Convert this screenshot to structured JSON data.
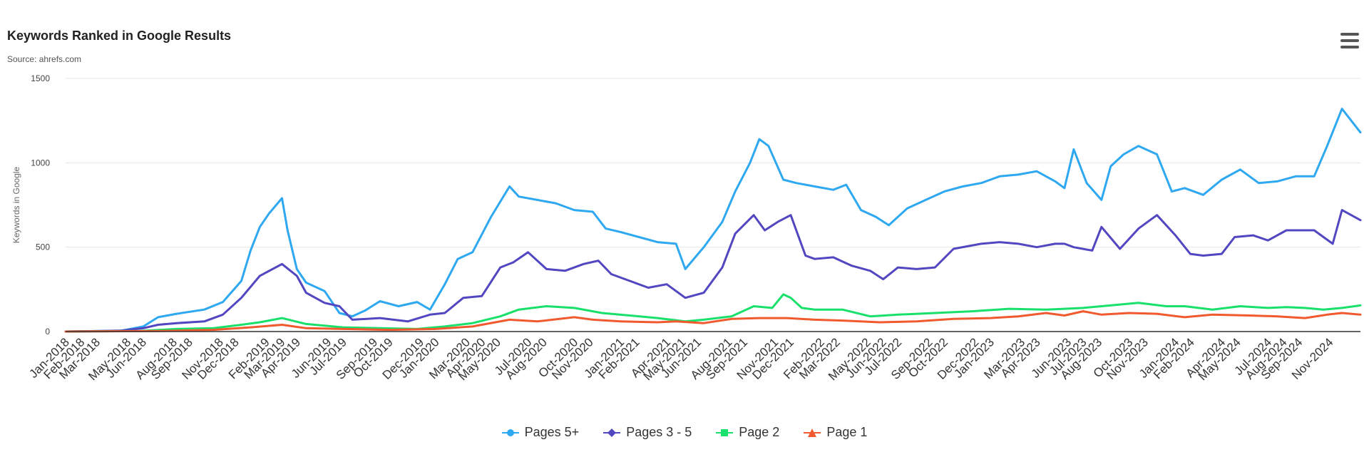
{
  "title": "Keywords Ranked in Google Results",
  "subtitle": "Source: ahrefs.com",
  "menu_icon": "hamburger-menu-icon",
  "chart_data": {
    "type": "line",
    "title": "Keywords Ranked in Google Results",
    "subtitle": "Source: ahrefs.com",
    "xlabel": "",
    "ylabel": "Keywords in Google",
    "ylim": [
      0,
      1500
    ],
    "yticks": [
      0,
      500,
      1000,
      1500
    ],
    "xlim": [
      2018.0,
      2025.0
    ],
    "grid": true,
    "legend_position": "bottom-center",
    "x_tick_labels": [
      "Jan-2018",
      "Feb-2018",
      "Mar-2018",
      "May-2018",
      "Jun-2018",
      "Aug-2018",
      "Sep-2018",
      "Nov-2018",
      "Dec-2018",
      "Feb-2019",
      "Mar-2019",
      "Apr-2019",
      "Jun-2019",
      "Jul-2019",
      "Sep-2019",
      "Oct-2019",
      "Dec-2019",
      "Jan-2020",
      "Mar-2020",
      "Apr-2020",
      "May-2020",
      "Jul-2020",
      "Aug-2020",
      "Oct-2020",
      "Nov-2020",
      "Jan-2021",
      "Feb-2021",
      "Apr-2021",
      "May-2021",
      "Jun-2021",
      "Aug-2021",
      "Sep-2021",
      "Nov-2021",
      "Dec-2021",
      "Feb-2022",
      "Mar-2022",
      "May-2022",
      "Jun-2022",
      "Jul-2022",
      "Sep-2022",
      "Oct-2022",
      "Dec-2022",
      "Jan-2023",
      "Mar-2023",
      "Apr-2023",
      "Jun-2023",
      "Jul-2023",
      "Aug-2023",
      "Oct-2023",
      "Nov-2023",
      "Jan-2024",
      "Feb-2024",
      "Apr-2024",
      "May-2024",
      "Jul-2024",
      "Aug-2024",
      "Sep-2024",
      "Nov-2024"
    ],
    "x_tick_values": [
      2018.0,
      2018.083,
      2018.167,
      2018.333,
      2018.417,
      2018.583,
      2018.667,
      2018.833,
      2018.917,
      2019.083,
      2019.167,
      2019.25,
      2019.417,
      2019.5,
      2019.667,
      2019.75,
      2019.917,
      2020.0,
      2020.167,
      2020.25,
      2020.333,
      2020.5,
      2020.583,
      2020.75,
      2020.833,
      2021.0,
      2021.083,
      2021.25,
      2021.333,
      2021.417,
      2021.583,
      2021.667,
      2021.833,
      2021.917,
      2022.083,
      2022.167,
      2022.333,
      2022.417,
      2022.5,
      2022.667,
      2022.75,
      2022.917,
      2023.0,
      2023.167,
      2023.25,
      2023.417,
      2023.5,
      2023.583,
      2023.75,
      2023.833,
      2024.0,
      2024.083,
      2024.25,
      2024.333,
      2024.5,
      2024.583,
      2024.667,
      2024.833
    ],
    "series": [
      {
        "name": "Pages 5+",
        "color": "#2ea8f0",
        "marker": "circle",
        "x": [
          2018.0,
          2018.3,
          2018.42,
          2018.5,
          2018.6,
          2018.75,
          2018.85,
          2018.95,
          2019.0,
          2019.05,
          2019.1,
          2019.17,
          2019.2,
          2019.25,
          2019.3,
          2019.4,
          2019.48,
          2019.55,
          2019.62,
          2019.7,
          2019.8,
          2019.9,
          2019.97,
          2020.05,
          2020.12,
          2020.2,
          2020.3,
          2020.4,
          2020.45,
          2020.55,
          2020.65,
          2020.75,
          2020.85,
          2020.92,
          2021.0,
          2021.1,
          2021.2,
          2021.3,
          2021.35,
          2021.45,
          2021.55,
          2021.62,
          2021.7,
          2021.75,
          2021.8,
          2021.88,
          2021.95,
          2022.05,
          2022.15,
          2022.22,
          2022.3,
          2022.38,
          2022.45,
          2022.55,
          2022.65,
          2022.75,
          2022.85,
          2022.95,
          2023.05,
          2023.15,
          2023.25,
          2023.35,
          2023.4,
          2023.45,
          2023.52,
          2023.6,
          2023.65,
          2023.72,
          2023.8,
          2023.9,
          2023.98,
          2024.05,
          2024.15,
          2024.25,
          2024.35,
          2024.45,
          2024.55,
          2024.65,
          2024.75,
          2024.82,
          2024.9,
          2025.0
        ],
        "y": [
          0,
          5,
          30,
          85,
          105,
          130,
          175,
          300,
          480,
          620,
          700,
          790,
          600,
          370,
          290,
          240,
          110,
          90,
          125,
          180,
          150,
          175,
          130,
          280,
          430,
          470,
          680,
          860,
          800,
          780,
          760,
          720,
          710,
          610,
          590,
          560,
          530,
          520,
          370,
          500,
          650,
          830,
          1000,
          1140,
          1100,
          900,
          880,
          860,
          840,
          870,
          720,
          680,
          630,
          730,
          780,
          830,
          860,
          880,
          920,
          930,
          950,
          890,
          850,
          1080,
          880,
          780,
          980,
          1050,
          1100,
          1050,
          830,
          850,
          810,
          900,
          960,
          880,
          890,
          920,
          920,
          1100,
          1320,
          1180
        ]
      },
      {
        "name": "Pages 3 - 5",
        "color": "#5247c0",
        "marker": "diamond",
        "x": [
          2018.0,
          2018.3,
          2018.42,
          2018.5,
          2018.6,
          2018.75,
          2018.85,
          2018.95,
          2019.05,
          2019.17,
          2019.25,
          2019.3,
          2019.4,
          2019.48,
          2019.55,
          2019.7,
          2019.85,
          2019.97,
          2020.05,
          2020.15,
          2020.25,
          2020.35,
          2020.42,
          2020.5,
          2020.6,
          2020.7,
          2020.8,
          2020.88,
          2020.95,
          2021.05,
          2021.15,
          2021.25,
          2021.35,
          2021.45,
          2021.55,
          2021.62,
          2021.72,
          2021.78,
          2021.85,
          2021.92,
          2022.0,
          2022.05,
          2022.15,
          2022.25,
          2022.35,
          2022.42,
          2022.5,
          2022.6,
          2022.7,
          2022.8,
          2022.95,
          2023.05,
          2023.15,
          2023.25,
          2023.35,
          2023.4,
          2023.45,
          2023.55,
          2023.6,
          2023.7,
          2023.8,
          2023.9,
          2024.0,
          2024.08,
          2024.15,
          2024.25,
          2024.32,
          2024.42,
          2024.5,
          2024.6,
          2024.68,
          2024.75,
          2024.85,
          2024.9,
          2025.0
        ],
        "y": [
          0,
          5,
          20,
          40,
          50,
          60,
          100,
          200,
          330,
          400,
          330,
          230,
          170,
          150,
          70,
          80,
          60,
          100,
          110,
          200,
          210,
          380,
          410,
          470,
          370,
          360,
          400,
          420,
          340,
          300,
          260,
          280,
          200,
          230,
          380,
          580,
          690,
          600,
          650,
          690,
          450,
          430,
          440,
          390,
          360,
          310,
          380,
          370,
          380,
          490,
          520,
          530,
          520,
          500,
          520,
          520,
          500,
          480,
          620,
          490,
          610,
          690,
          570,
          460,
          450,
          460,
          560,
          570,
          540,
          600,
          600,
          600,
          520,
          720,
          660
        ]
      },
      {
        "name": "Page 2",
        "color": "#19e06a",
        "marker": "square",
        "x": [
          2018.0,
          2018.4,
          2018.6,
          2018.8,
          2018.95,
          2019.05,
          2019.17,
          2019.3,
          2019.5,
          2019.7,
          2019.9,
          2020.05,
          2020.2,
          2020.35,
          2020.45,
          2020.6,
          2020.75,
          2020.9,
          2021.05,
          2021.2,
          2021.35,
          2021.45,
          2021.6,
          2021.72,
          2021.82,
          2021.88,
          2021.92,
          2021.98,
          2022.05,
          2022.2,
          2022.35,
          2022.5,
          2022.7,
          2022.9,
          2023.1,
          2023.3,
          2023.4,
          2023.5,
          2023.6,
          2023.7,
          2023.8,
          2023.95,
          2024.05,
          2024.2,
          2024.35,
          2024.5,
          2024.6,
          2024.7,
          2024.8,
          2024.9,
          2025.0
        ],
        "y": [
          0,
          3,
          15,
          20,
          40,
          55,
          80,
          45,
          25,
          20,
          15,
          30,
          50,
          90,
          130,
          150,
          140,
          110,
          95,
          80,
          60,
          70,
          90,
          150,
          140,
          220,
          200,
          140,
          130,
          130,
          90,
          100,
          110,
          120,
          135,
          130,
          135,
          140,
          150,
          160,
          170,
          150,
          150,
          130,
          150,
          140,
          145,
          140,
          130,
          140,
          155
        ]
      },
      {
        "name": "Page 1",
        "color": "#f05a2e",
        "marker": "triangle",
        "x": [
          2018.0,
          2018.5,
          2018.8,
          2019.0,
          2019.17,
          2019.3,
          2019.5,
          2019.75,
          2020.0,
          2020.2,
          2020.4,
          2020.55,
          2020.75,
          2020.85,
          2021.0,
          2021.2,
          2021.3,
          2021.45,
          2021.6,
          2021.75,
          2021.9,
          2022.05,
          2022.2,
          2022.4,
          2022.6,
          2022.8,
          2023.0,
          2023.15,
          2023.3,
          2023.4,
          2023.5,
          2023.6,
          2023.75,
          2023.9,
          2024.05,
          2024.2,
          2024.4,
          2024.55,
          2024.7,
          2024.82,
          2024.9,
          2025.0
        ],
        "y": [
          0,
          3,
          10,
          25,
          40,
          20,
          15,
          10,
          15,
          30,
          70,
          60,
          85,
          70,
          60,
          55,
          60,
          50,
          75,
          80,
          80,
          70,
          65,
          55,
          60,
          75,
          80,
          90,
          110,
          95,
          120,
          100,
          110,
          105,
          85,
          100,
          95,
          90,
          80,
          100,
          110,
          100
        ]
      }
    ]
  }
}
